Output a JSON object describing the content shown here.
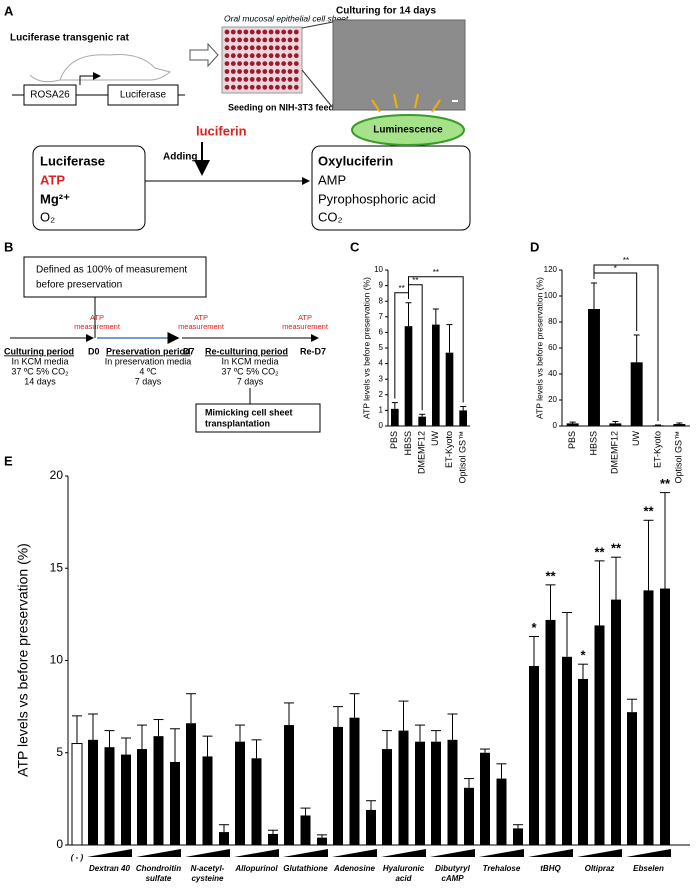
{
  "panel_a": {
    "letter": "A",
    "rat_label": "Luciferase transgenic rat",
    "gene": [
      "ROSA26",
      "Luciferase"
    ],
    "plate_label": "Oral mucosal epithelial cell sheet",
    "seeding": "Seeding on NIH-3T3 feeder",
    "culturing": "Culturing for 14 days",
    "substrate": "luciferin",
    "adding": "Adding",
    "reactants": [
      "Luciferase",
      "ATP",
      "Mg²⁺",
      "O₂"
    ],
    "products": [
      "Oxyluciferin",
      "AMP",
      "Pyrophosphoric acid",
      "CO₂"
    ],
    "emission": "Luminescence"
  },
  "panel_b": {
    "letter": "B",
    "definition": [
      "Defined as 100% of measurement",
      "before preservation"
    ],
    "measurement": [
      "ATP",
      "measurement"
    ],
    "periods": [
      {
        "title": "Culturing period",
        "lines": [
          "In KCM media",
          "37 ºC  5%  CO₂",
          "14 days"
        ]
      },
      {
        "title": "Preservation period",
        "lines": [
          "In preservation media",
          "4 ºC",
          "7 days"
        ]
      },
      {
        "title": "Re-culturing period",
        "lines": [
          "In KCM media",
          "37 ºC  5%  CO₂",
          "7 days"
        ]
      }
    ],
    "days": [
      "D0",
      "D7",
      "Re-D7"
    ],
    "mimic": [
      "Mimicking cell sheet",
      "transplantation"
    ]
  },
  "chart_data": [
    {
      "type": "bar",
      "panel": "C",
      "y_label": "ATP levels vs before preservation (%)",
      "categories": [
        "PBS",
        "HBSS",
        "DMEMF12",
        "UW",
        "ET-Kyoto",
        "Optisol GS™"
      ],
      "values": [
        1.1,
        6.4,
        0.6,
        6.5,
        4.7,
        1.0
      ],
      "errors": [
        0.4,
        1.5,
        0.15,
        1.0,
        1.8,
        0.25
      ],
      "color": "#000000",
      "ylim": [
        0,
        10
      ],
      "yticks": [
        0,
        1,
        2,
        3,
        4,
        5,
        6,
        7,
        8,
        9,
        10
      ],
      "comparisons": [
        {
          "label": "**",
          "between": [
            0,
            1
          ]
        },
        {
          "label": "**",
          "between": [
            1,
            2
          ]
        },
        {
          "label": "**",
          "between": [
            1,
            5
          ]
        }
      ]
    },
    {
      "type": "bar",
      "panel": "D",
      "y_label": "ATP levels vs before preservation (%)",
      "categories": [
        "PBS",
        "HBSS",
        "DMEMF12",
        "UW",
        "ET-Kyoto",
        "Optisol GS™"
      ],
      "values": [
        2,
        90,
        2,
        49,
        0.5,
        1.5
      ],
      "errors": [
        1,
        20,
        1.5,
        21,
        0.3,
        0.8
      ],
      "color": "#000000",
      "ylim": [
        0,
        120
      ],
      "yticks": [
        0,
        20,
        40,
        60,
        80,
        100,
        120
      ],
      "comparisons": [
        {
          "label": "*",
          "between": [
            1,
            3
          ]
        },
        {
          "label": "**",
          "between": [
            1,
            4
          ]
        }
      ]
    },
    {
      "type": "grouped-bar",
      "panel": "E",
      "y_label": "ATP levels vs before preservation (%)",
      "ylim": [
        0,
        20
      ],
      "yticks": [
        0,
        5,
        10,
        15,
        20
      ],
      "color": "#000000",
      "control": {
        "label": "( - )",
        "value": 5.5,
        "error": 1.5,
        "color": "#ffffff"
      },
      "groups": [
        {
          "label": [
            "Dextran 40"
          ],
          "values": [
            5.7,
            5.3,
            4.9
          ],
          "errors": [
            1.4,
            0.9,
            0.9
          ],
          "significance": [
            null,
            null,
            null
          ]
        },
        {
          "label": [
            "Chondroitin",
            "sulfate"
          ],
          "values": [
            5.2,
            5.9,
            4.5
          ],
          "errors": [
            1.3,
            0.9,
            1.8
          ],
          "significance": [
            null,
            null,
            null
          ]
        },
        {
          "label": [
            "N-acetyl-",
            "cysteine"
          ],
          "values": [
            6.6,
            4.8,
            0.7
          ],
          "errors": [
            1.6,
            1.1,
            0.4
          ],
          "significance": [
            null,
            null,
            null
          ]
        },
        {
          "label": [
            "Allopurinol"
          ],
          "values": [
            5.6,
            4.7,
            0.6
          ],
          "errors": [
            0.9,
            1.0,
            0.2
          ],
          "significance": [
            null,
            null,
            null
          ]
        },
        {
          "label": [
            "Glutathione"
          ],
          "values": [
            6.5,
            1.6,
            0.4
          ],
          "errors": [
            1.2,
            0.4,
            0.15
          ],
          "significance": [
            null,
            null,
            null
          ]
        },
        {
          "label": [
            "Adenosine"
          ],
          "values": [
            6.4,
            6.9,
            1.9
          ],
          "errors": [
            1.1,
            1.3,
            0.5
          ],
          "significance": [
            null,
            null,
            null
          ]
        },
        {
          "label": [
            "Hyaluronic",
            "acid"
          ],
          "values": [
            5.2,
            6.2,
            5.6
          ],
          "errors": [
            1.0,
            1.6,
            0.9
          ],
          "significance": [
            null,
            null,
            null
          ]
        },
        {
          "label": [
            "Dibutyryl",
            "cAMP"
          ],
          "values": [
            5.6,
            5.7,
            3.1
          ],
          "errors": [
            0.6,
            1.4,
            0.5
          ],
          "significance": [
            null,
            null,
            null
          ]
        },
        {
          "label": [
            "Trehalose"
          ],
          "values": [
            5.0,
            3.6,
            0.9
          ],
          "errors": [
            0.2,
            0.8,
            0.2
          ],
          "significance": [
            null,
            null,
            null
          ]
        },
        {
          "label": [
            "tBHQ"
          ],
          "values": [
            9.7,
            12.2,
            10.2
          ],
          "errors": [
            1.6,
            1.9,
            2.4
          ],
          "significance": [
            "*",
            "**",
            null
          ]
        },
        {
          "label": [
            "Oltipraz"
          ],
          "values": [
            9.0,
            11.9,
            13.3
          ],
          "errors": [
            0.8,
            3.5,
            2.3
          ],
          "significance": [
            "*",
            "**",
            "**"
          ]
        },
        {
          "label": [
            "Ebselen"
          ],
          "values": [
            7.2,
            13.8,
            13.9
          ],
          "errors": [
            0.7,
            3.8,
            5.2
          ],
          "significance": [
            null,
            "**",
            "**"
          ]
        }
      ]
    }
  ]
}
